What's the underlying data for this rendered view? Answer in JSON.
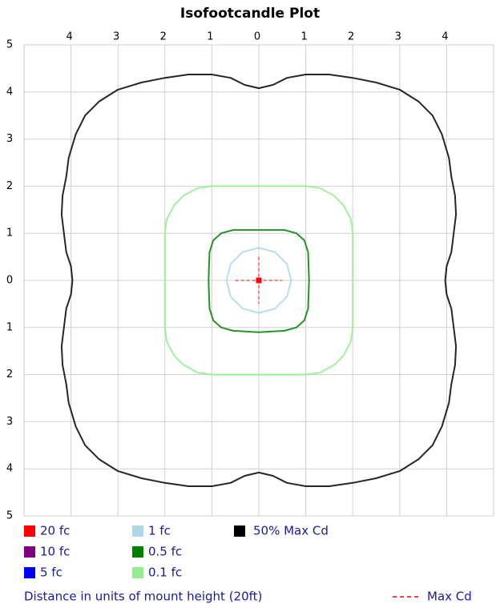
{
  "chart_data": {
    "type": "contour",
    "title": "Isofootcandle Plot",
    "xlabel": "Distance in units of mount height (20ft)",
    "xlim": [
      -5,
      5
    ],
    "ylim": [
      -5,
      5
    ],
    "xticks": [
      {
        "value": -4,
        "label": "4"
      },
      {
        "value": -3,
        "label": "3"
      },
      {
        "value": -2,
        "label": "2"
      },
      {
        "value": -1,
        "label": "1"
      },
      0,
      1,
      2,
      3,
      4
    ],
    "yticks": [
      {
        "value": -5,
        "label": "5"
      },
      {
        "value": -4,
        "label": "4"
      },
      {
        "value": -3,
        "label": "3"
      },
      {
        "value": -2,
        "label": "2"
      },
      {
        "value": -1,
        "label": "1"
      },
      0,
      1,
      2,
      3,
      4,
      5
    ],
    "grid": true,
    "series": [
      {
        "name": "20 fc",
        "color": "#ff0000"
      },
      {
        "name": "10 fc",
        "color": "#800080"
      },
      {
        "name": "5 fc",
        "color": "#0000ff"
      },
      {
        "name": "1 fc",
        "color": "#add8e6",
        "x": [
          0,
          0.345,
          0.6,
          0.69,
          0.6,
          0.345,
          0,
          -0.345,
          -0.6,
          -0.69,
          -0.6,
          -0.345
        ],
        "y": [
          0.69,
          0.6,
          0.345,
          0,
          -0.345,
          -0.6,
          -0.69,
          -0.6,
          -0.345,
          0,
          0.345,
          0.6
        ]
      },
      {
        "name": "0.5 fc",
        "color": "#008000",
        "x": [
          0,
          0.55,
          0.8,
          0.97,
          1.05,
          1.07,
          1.05,
          0.97,
          0.8,
          0.55,
          0,
          -0.55,
          -0.8,
          -0.97,
          -1.05,
          -1.07,
          -1.05,
          -0.97,
          -0.8,
          -0.55
        ],
        "y": [
          1.07,
          1.07,
          1.0,
          0.85,
          0.6,
          0,
          -0.6,
          -0.85,
          -1.0,
          -1.07,
          -1.1,
          -1.07,
          -1.0,
          -0.85,
          -0.6,
          0,
          0.6,
          0.85,
          1.0,
          1.07
        ]
      },
      {
        "name": "0.1 fc",
        "color": "#90ee90",
        "x": [
          0,
          1,
          1.3,
          1.6,
          1.8,
          1.96,
          2,
          2,
          2,
          1.96,
          1.8,
          1.6,
          1.3,
          1,
          0,
          -1,
          -1.3,
          -1.6,
          -1.8,
          -1.96,
          -2,
          -2,
          -2,
          -1.96,
          -1.8,
          -1.6,
          -1.3,
          -1
        ],
        "y": [
          2,
          2,
          1.96,
          1.8,
          1.6,
          1.3,
          1,
          0,
          -1,
          -1.3,
          -1.6,
          -1.8,
          -1.96,
          -2,
          -2,
          -2,
          -1.96,
          -1.8,
          -1.6,
          -1.3,
          -1,
          0,
          1,
          1.3,
          1.6,
          1.8,
          1.96,
          2
        ]
      },
      {
        "name": "50% Max Cd",
        "color": "#000000",
        "x": [
          0,
          0.3,
          0.6,
          1,
          1.5,
          2,
          2.5,
          3,
          3.4,
          3.7,
          3.9,
          4.05,
          4.1,
          4.18,
          4.2,
          4.15,
          4.1,
          4.0,
          3.97,
          4.0,
          4.1,
          4.15,
          4.2,
          4.18,
          4.1,
          4.05,
          3.9,
          3.7,
          3.4,
          3,
          2.5,
          2,
          1.5,
          1,
          0.6,
          0.3,
          0,
          -0.3,
          -0.6,
          -1,
          -1.5,
          -2,
          -2.5,
          -3,
          -3.4,
          -3.7,
          -3.9,
          -4.05,
          -4.1,
          -4.18,
          -4.2,
          -4.15,
          -4.1,
          -4.0,
          -3.97,
          -4.0,
          -4.1,
          -4.15,
          -4.2,
          -4.18,
          -4.1,
          -4.05,
          -3.9,
          -3.7,
          -3.4,
          -3,
          -2.5,
          -2,
          -1.5,
          -1,
          -0.6,
          -0.3
        ],
        "y": [
          4.08,
          4.15,
          4.3,
          4.37,
          4.37,
          4.3,
          4.2,
          4.05,
          3.8,
          3.5,
          3.1,
          2.6,
          2.2,
          1.8,
          1.4,
          1,
          0.6,
          0.3,
          0,
          -0.3,
          -0.6,
          -1,
          -1.4,
          -1.8,
          -2.2,
          -2.6,
          -3.1,
          -3.5,
          -3.8,
          -4.05,
          -4.2,
          -4.3,
          -4.37,
          -4.37,
          -4.3,
          -4.15,
          -4.08,
          -4.15,
          -4.3,
          -4.37,
          -4.37,
          -4.3,
          -4.2,
          -4.05,
          -3.8,
          -3.5,
          -3.1,
          -2.6,
          -2.2,
          -1.8,
          -1.4,
          -1,
          -0.6,
          -0.3,
          0,
          0.3,
          0.6,
          1,
          1.4,
          1.8,
          2.2,
          2.6,
          3.1,
          3.5,
          3.8,
          4.05,
          4.2,
          4.3,
          4.37,
          4.37,
          4.3,
          4.15
        ]
      }
    ],
    "max_cd": {
      "x": 0,
      "y": 0,
      "label": "Max Cd",
      "color": "#ff0000"
    }
  }
}
